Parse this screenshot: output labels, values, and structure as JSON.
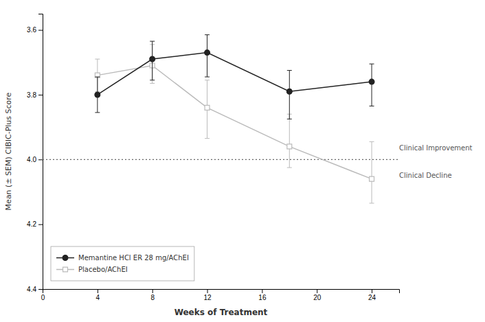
{
  "chart_data": {
    "type": "line",
    "x": [
      4,
      8,
      12,
      18,
      24
    ],
    "series": [
      {
        "name": "Memantine HCl ER 28 mg/AChEI",
        "color": "#222222",
        "marker": "circle",
        "line_style": "solid",
        "values": [
          3.8,
          3.69,
          3.67,
          3.79,
          3.76
        ],
        "error_lower": [
          0.055,
          0.055,
          0.055,
          0.065,
          0.055
        ],
        "error_upper": [
          0.055,
          0.065,
          0.075,
          0.085,
          0.075
        ]
      },
      {
        "name": "Placebo/AChEI",
        "color": "#bbbbbb",
        "marker": "open-square",
        "line_style": "solid",
        "values": [
          3.74,
          3.71,
          3.84,
          3.96,
          4.06
        ],
        "error_lower": [
          0.05,
          0.065,
          0.085,
          0.1,
          0.115
        ],
        "error_upper": [
          0.05,
          0.055,
          0.095,
          0.065,
          0.075
        ]
      }
    ],
    "xlabel": "Weeks of Treatment",
    "ylabel": "Mean (± SEM) CIBIC-Plus Score",
    "xlim": [
      0,
      26
    ],
    "ylim": [
      4.4,
      3.55
    ],
    "xticks": [
      0,
      4,
      8,
      12,
      16,
      20,
      24
    ],
    "yticks": [
      3.6,
      3.8,
      {
        "value": 4.0,
        "label": "4.0"
      },
      4.2,
      4.4
    ],
    "reference_lines": [
      {
        "y": 4.0,
        "color": "#666666",
        "line_style": "dotted"
      }
    ],
    "annotations": [
      {
        "text": "Clinical Improvement",
        "x": 25.8,
        "y": 3.965
      },
      {
        "text": "Clinical Decline",
        "x": 25.8,
        "y": 4.05
      }
    ],
    "grid": false,
    "legend": "lower left"
  }
}
